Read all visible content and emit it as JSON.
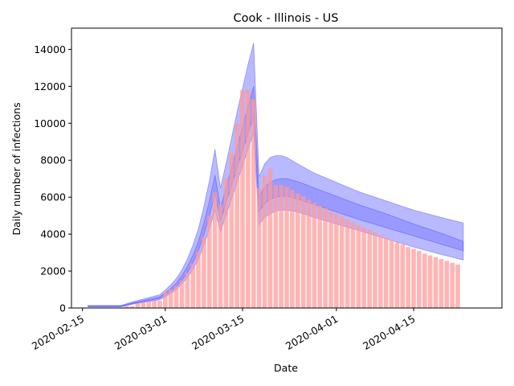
{
  "chart_data": {
    "type": "bar",
    "title": "Cook - Illinois - US",
    "xlabel": "Date",
    "ylabel": "Daily number of infections",
    "x_start": "2020-02-13",
    "x_end": "2020-05-01",
    "ylim": [
      0,
      15150
    ],
    "x_ticks": [
      "2020-02-15",
      "2020-03-01",
      "2020-03-15",
      "2020-04-01",
      "2020-04-15"
    ],
    "y_ticks": [
      0,
      2000,
      4000,
      6000,
      8000,
      10000,
      12000,
      14000
    ],
    "grid": false,
    "legend": "none",
    "colors": {
      "bars": "#ff9999",
      "band": "#8080ff"
    },
    "bars": {
      "name": "Daily infections",
      "start_date": "2020-02-23",
      "values": [
        100,
        100,
        250,
        300,
        350,
        400,
        400,
        850,
        1000,
        1200,
        1500,
        1900,
        2400,
        3050,
        3850,
        5000,
        6250,
        5600,
        7000,
        8400,
        10000,
        11800,
        11800,
        11300,
        6500,
        7150,
        7550,
        6650,
        6650,
        6550,
        6400,
        6200,
        6050,
        5850,
        5700,
        5550,
        5400,
        5250,
        5100,
        4950,
        4800,
        4650,
        4500,
        4350,
        4250,
        4100,
        3950,
        3800,
        3700,
        3550,
        3450,
        3300,
        3200,
        3100,
        2950,
        2850,
        2750,
        2650,
        2550,
        2450,
        2350
      ]
    },
    "bands": {
      "dates": [
        "2020-02-16",
        "2020-02-22",
        "2020-02-24",
        "2020-02-29",
        "2020-03-01",
        "2020-03-02",
        "2020-03-03",
        "2020-03-04",
        "2020-03-05",
        "2020-03-06",
        "2020-03-07",
        "2020-03-08",
        "2020-03-09",
        "2020-03-10",
        "2020-03-11",
        "2020-03-12",
        "2020-03-13",
        "2020-03-14",
        "2020-03-15",
        "2020-03-16",
        "2020-03-17",
        "2020-03-18",
        "2020-03-19",
        "2020-03-20",
        "2020-03-21",
        "2020-03-22",
        "2020-03-23",
        "2020-03-25",
        "2020-03-28",
        "2020-04-01",
        "2020-04-05",
        "2020-04-10",
        "2020-04-15",
        "2020-04-20",
        "2020-04-24"
      ],
      "outer_lower": [
        60,
        60,
        200,
        450,
        600,
        780,
        1000,
        1300,
        1650,
        2100,
        2650,
        3400,
        4300,
        5300,
        4150,
        5000,
        5900,
        6800,
        7700,
        8600,
        9500,
        4500,
        4900,
        5100,
        5250,
        5300,
        5300,
        5200,
        4900,
        4550,
        4200,
        3750,
        3300,
        2900,
        2600
      ],
      "inner_lower": [
        80,
        80,
        230,
        520,
        700,
        900,
        1150,
        1500,
        1900,
        2450,
        3100,
        3950,
        5000,
        6200,
        4700,
        5700,
        6650,
        7600,
        8500,
        9450,
        10400,
        5200,
        5650,
        5900,
        6000,
        6050,
        6050,
        5900,
        5600,
        5200,
        4800,
        4350,
        3900,
        3450,
        3100
      ],
      "inner_upper": [
        110,
        110,
        270,
        600,
        820,
        1060,
        1350,
        1750,
        2250,
        2850,
        3600,
        4600,
        5800,
        7200,
        5400,
        6500,
        7600,
        8700,
        9800,
        10900,
        12000,
        6000,
        6550,
        6800,
        6950,
        7000,
        7000,
        6850,
        6500,
        6050,
        5600,
        5100,
        4550,
        4050,
        3600
      ],
      "outer_upper": [
        140,
        140,
        330,
        720,
        980,
        1260,
        1600,
        2050,
        2650,
        3400,
        4300,
        5500,
        6900,
        8600,
        6500,
        7800,
        9200,
        10600,
        11900,
        13200,
        14350,
        7100,
        7800,
        8150,
        8250,
        8250,
        8150,
        7800,
        7300,
        6800,
        6300,
        5800,
        5300,
        4900,
        4600
      ]
    }
  }
}
